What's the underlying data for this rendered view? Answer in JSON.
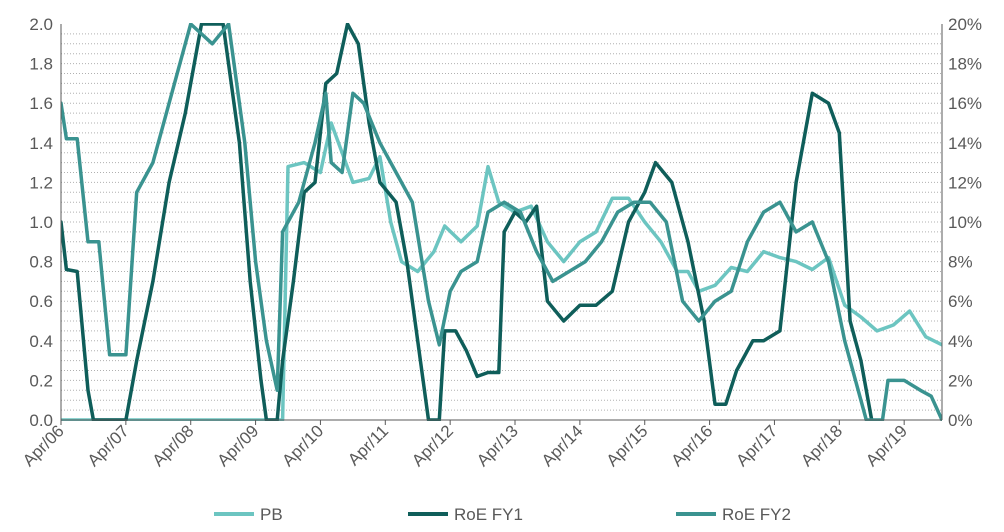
{
  "chart_data": {
    "type": "line",
    "title": "",
    "xlabel": "",
    "ylabel": "",
    "x_start": "2006-04",
    "x_end": "2019-11",
    "x_ticks": [
      "Apr/06",
      "Apr/07",
      "Apr/08",
      "Apr/09",
      "Apr/10",
      "Apr/11",
      "Apr/12",
      "Apr/13",
      "Apr/14",
      "Apr/15",
      "Apr/16",
      "Apr/17",
      "Apr/18",
      "Apr/19"
    ],
    "ylim": [
      0,
      2.0
    ],
    "y_ticks": [
      "0.0",
      "0.2",
      "0.4",
      "0.6",
      "0.8",
      "1.0",
      "1.2",
      "1.4",
      "1.6",
      "1.8",
      "2.0"
    ],
    "y2lim": [
      0,
      20
    ],
    "y2_ticks": [
      "0%",
      "2%",
      "4%",
      "6%",
      "8%",
      "10%",
      "12%",
      "14%",
      "16%",
      "18%",
      "20%"
    ],
    "grid": "horizontal dotted",
    "legend_position": "bottom",
    "colors": {
      "PB": "#6cc5c1",
      "RoE FY1": "#0f5e5a",
      "RoE FY2": "#3a9390",
      "axis": "#595959",
      "grid": "#b0b0b0"
    },
    "series": [
      {
        "name": "PB",
        "axis": "left",
        "points": [
          [
            "2006-04",
            0
          ],
          [
            "2007-04",
            0
          ],
          [
            "2008-04",
            0
          ],
          [
            "2009-04",
            0
          ],
          [
            "2009-09",
            0
          ],
          [
            "2009-10",
            1.28
          ],
          [
            "2010-01",
            1.3
          ],
          [
            "2010-04",
            1.25
          ],
          [
            "2010-06",
            1.5
          ],
          [
            "2010-08",
            1.35
          ],
          [
            "2010-10",
            1.2
          ],
          [
            "2011-01",
            1.22
          ],
          [
            "2011-03",
            1.33
          ],
          [
            "2011-05",
            1.0
          ],
          [
            "2011-07",
            0.8
          ],
          [
            "2011-10",
            0.75
          ],
          [
            "2012-01",
            0.85
          ],
          [
            "2012-03",
            0.98
          ],
          [
            "2012-06",
            0.9
          ],
          [
            "2012-09",
            0.98
          ],
          [
            "2012-11",
            1.28
          ],
          [
            "2013-01",
            1.1
          ],
          [
            "2013-04",
            1.05
          ],
          [
            "2013-07",
            1.08
          ],
          [
            "2013-10",
            0.9
          ],
          [
            "2014-01",
            0.8
          ],
          [
            "2014-04",
            0.9
          ],
          [
            "2014-07",
            0.95
          ],
          [
            "2014-10",
            1.12
          ],
          [
            "2015-01",
            1.12
          ],
          [
            "2015-04",
            1.0
          ],
          [
            "2015-07",
            0.9
          ],
          [
            "2015-10",
            0.75
          ],
          [
            "2015-12",
            0.75
          ],
          [
            "2016-02",
            0.65
          ],
          [
            "2016-05",
            0.68
          ],
          [
            "2016-08",
            0.77
          ],
          [
            "2016-11",
            0.75
          ],
          [
            "2017-02",
            0.85
          ],
          [
            "2017-05",
            0.82
          ],
          [
            "2017-08",
            0.8
          ],
          [
            "2017-11",
            0.76
          ],
          [
            "2018-02",
            0.82
          ],
          [
            "2018-05",
            0.58
          ],
          [
            "2018-08",
            0.52
          ],
          [
            "2018-11",
            0.45
          ],
          [
            "2019-02",
            0.48
          ],
          [
            "2019-05",
            0.55
          ],
          [
            "2019-08",
            0.42
          ],
          [
            "2019-11",
            0.38
          ]
        ]
      },
      {
        "name": "RoE FY1",
        "axis": "right",
        "points": [
          [
            "2006-04",
            10
          ],
          [
            "2006-05",
            7.6
          ],
          [
            "2006-07",
            7.5
          ],
          [
            "2006-09",
            1.5
          ],
          [
            "2006-10",
            0
          ],
          [
            "2006-11",
            0
          ],
          [
            "2007-04",
            0
          ],
          [
            "2007-06",
            3
          ],
          [
            "2007-09",
            7
          ],
          [
            "2007-12",
            12
          ],
          [
            "2008-03",
            15.5
          ],
          [
            "2008-06",
            20
          ],
          [
            "2008-10",
            20
          ],
          [
            "2009-01",
            14
          ],
          [
            "2009-03",
            7
          ],
          [
            "2009-05",
            2
          ],
          [
            "2009-06",
            0
          ],
          [
            "2009-08",
            0
          ],
          [
            "2009-09",
            3
          ],
          [
            "2009-11",
            7
          ],
          [
            "2010-01",
            11.5
          ],
          [
            "2010-03",
            12
          ],
          [
            "2010-05",
            17
          ],
          [
            "2010-07",
            17.5
          ],
          [
            "2010-09",
            20
          ],
          [
            "2010-11",
            19
          ],
          [
            "2011-01",
            15
          ],
          [
            "2011-03",
            12
          ],
          [
            "2011-06",
            11
          ],
          [
            "2011-08",
            8
          ],
          [
            "2011-10",
            4
          ],
          [
            "2011-12",
            0
          ],
          [
            "2012-02",
            0
          ],
          [
            "2012-03",
            4.5
          ],
          [
            "2012-05",
            4.5
          ],
          [
            "2012-07",
            3.5
          ],
          [
            "2012-09",
            2.2
          ],
          [
            "2012-11",
            2.4
          ],
          [
            "2013-01",
            2.4
          ],
          [
            "2013-02",
            9.5
          ],
          [
            "2013-04",
            10.5
          ],
          [
            "2013-06",
            10
          ],
          [
            "2013-08",
            10.8
          ],
          [
            "2013-10",
            6
          ],
          [
            "2014-01",
            5
          ],
          [
            "2014-04",
            5.8
          ],
          [
            "2014-07",
            5.8
          ],
          [
            "2014-10",
            6.5
          ],
          [
            "2015-01",
            10
          ],
          [
            "2015-04",
            11.5
          ],
          [
            "2015-06",
            13
          ],
          [
            "2015-09",
            12
          ],
          [
            "2015-12",
            9
          ],
          [
            "2016-03",
            5
          ],
          [
            "2016-05",
            0.8
          ],
          [
            "2016-07",
            0.8
          ],
          [
            "2016-09",
            2.5
          ],
          [
            "2016-12",
            4
          ],
          [
            "2017-02",
            4
          ],
          [
            "2017-05",
            4.5
          ],
          [
            "2017-08",
            12
          ],
          [
            "2017-11",
            16.5
          ],
          [
            "2018-02",
            16
          ],
          [
            "2018-04",
            14.5
          ],
          [
            "2018-06",
            5
          ],
          [
            "2018-08",
            3
          ],
          [
            "2018-10",
            0
          ]
        ]
      },
      {
        "name": "RoE FY2",
        "axis": "right",
        "points": [
          [
            "2006-04",
            16
          ],
          [
            "2006-05",
            14.2
          ],
          [
            "2006-07",
            14.2
          ],
          [
            "2006-09",
            9
          ],
          [
            "2006-11",
            9
          ],
          [
            "2007-01",
            3.3
          ],
          [
            "2007-04",
            3.3
          ],
          [
            "2007-06",
            11.5
          ],
          [
            "2007-09",
            13
          ],
          [
            "2007-12",
            16
          ],
          [
            "2008-02",
            18
          ],
          [
            "2008-04",
            20
          ],
          [
            "2008-08",
            19
          ],
          [
            "2008-11",
            20
          ],
          [
            "2009-02",
            14
          ],
          [
            "2009-04",
            8
          ],
          [
            "2009-06",
            4
          ],
          [
            "2009-08",
            1.5
          ],
          [
            "2009-09",
            9.5
          ],
          [
            "2009-12",
            11
          ],
          [
            "2010-03",
            14
          ],
          [
            "2010-05",
            16.5
          ],
          [
            "2010-06",
            13
          ],
          [
            "2010-08",
            12.5
          ],
          [
            "2010-10",
            16.5
          ],
          [
            "2010-12",
            16
          ],
          [
            "2011-03",
            14
          ],
          [
            "2011-06",
            12.5
          ],
          [
            "2011-09",
            11
          ],
          [
            "2011-12",
            6
          ],
          [
            "2012-02",
            3.8
          ],
          [
            "2012-04",
            6.5
          ],
          [
            "2012-06",
            7.5
          ],
          [
            "2012-09",
            8
          ],
          [
            "2012-11",
            10.5
          ],
          [
            "2013-02",
            11
          ],
          [
            "2013-05",
            10.5
          ],
          [
            "2013-08",
            8.5
          ],
          [
            "2013-11",
            7
          ],
          [
            "2014-02",
            7.5
          ],
          [
            "2014-05",
            8
          ],
          [
            "2014-08",
            9
          ],
          [
            "2014-11",
            10.5
          ],
          [
            "2015-02",
            11
          ],
          [
            "2015-05",
            11
          ],
          [
            "2015-08",
            10
          ],
          [
            "2015-11",
            6
          ],
          [
            "2016-02",
            5
          ],
          [
            "2016-05",
            6
          ],
          [
            "2016-08",
            6.5
          ],
          [
            "2016-11",
            9
          ],
          [
            "2017-02",
            10.5
          ],
          [
            "2017-05",
            11
          ],
          [
            "2017-08",
            9.5
          ],
          [
            "2017-11",
            10
          ],
          [
            "2018-02",
            8
          ],
          [
            "2018-05",
            4
          ],
          [
            "2018-07",
            2
          ],
          [
            "2018-09",
            0
          ],
          [
            "2018-12",
            0
          ],
          [
            "2019-01",
            2
          ],
          [
            "2019-04",
            2
          ],
          [
            "2019-07",
            1.5
          ],
          [
            "2019-09",
            1.2
          ],
          [
            "2019-11",
            0
          ]
        ]
      }
    ]
  }
}
